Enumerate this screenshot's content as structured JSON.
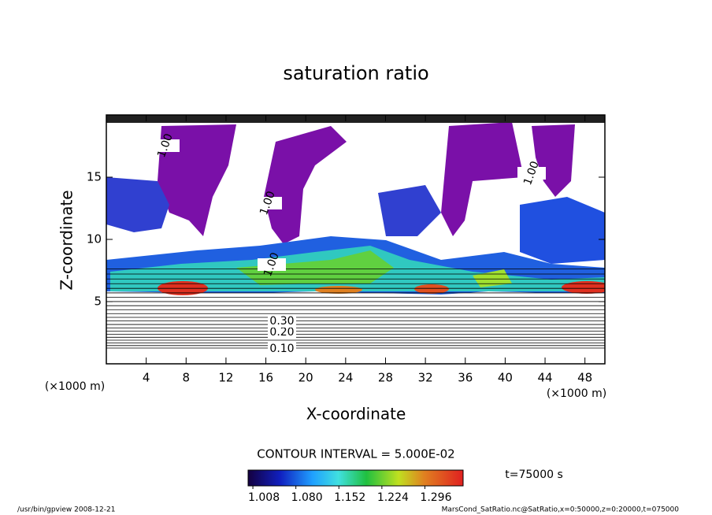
{
  "chart_data": {
    "type": "contour",
    "title": "saturation ratio",
    "xlabel": "X-coordinate",
    "ylabel": "Z-coordinate",
    "x_unit": "(×1000 m)",
    "y_unit": "(×1000 m)",
    "xlim": [
      0,
      50
    ],
    "ylim": [
      0,
      20
    ],
    "xticks": [
      4,
      8,
      12,
      16,
      20,
      24,
      28,
      32,
      36,
      40,
      44,
      48
    ],
    "yticks": [
      5,
      10,
      15
    ],
    "contour_labels": [
      "0.10",
      "0.20",
      "0.30",
      "1.00",
      "1.00",
      "1.00",
      "1.00"
    ],
    "contour_interval": "CONTOUR INTERVAL = 5.000E-02",
    "time_label": "t=75000 s",
    "colorbar": {
      "clim": [
        1.0,
        1.36
      ],
      "ticks": [
        {
          "value": 1.008,
          "label": "1.008"
        },
        {
          "value": 1.08,
          "label": "1.080"
        },
        {
          "value": 1.152,
          "label": "1.152"
        },
        {
          "value": 1.224,
          "label": "1.224"
        },
        {
          "value": 1.296,
          "label": "1.296"
        }
      ]
    },
    "footer_left": "/usr/bin/gpview   2008-12-21",
    "footer_right": "MarsCond_SatRatio.nc@SatRatio,x=0:50000,z=0:20000,t=075000"
  }
}
